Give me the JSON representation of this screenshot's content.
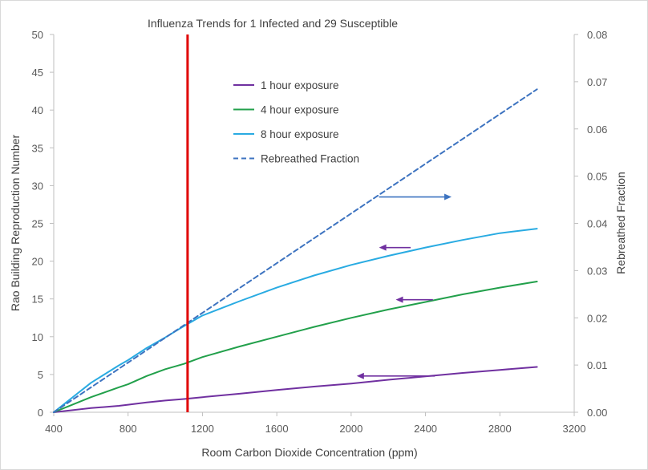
{
  "chart_data": {
    "type": "line",
    "title": "Influenza Trends for 1 Infected and 29 Susceptible",
    "xlabel": "Room Carbon Dioxide Concentration (ppm)",
    "ylabel": "Rao Building Reproduction Number",
    "y2label": "Rebreathed Fraction",
    "xlim": [
      400,
      3200
    ],
    "ylim": [
      0,
      50
    ],
    "y2lim": [
      0,
      0.08
    ],
    "xticks": [
      "400",
      "800",
      "1200",
      "1600",
      "2000",
      "2400",
      "2800",
      "3200"
    ],
    "yticks": [
      "0",
      "5",
      "10",
      "15",
      "20",
      "25",
      "30",
      "35",
      "40",
      "45",
      "50"
    ],
    "y2ticks": [
      "0.00",
      "0.01",
      "0.02",
      "0.03",
      "0.04",
      "0.05",
      "0.06",
      "0.07",
      "0.08"
    ],
    "grid": false,
    "legend_position": "upper-center",
    "reference_line": {
      "x": 1120,
      "color": "#e00000"
    },
    "series": [
      {
        "name": "1 hour exposure",
        "color": "#7030a0",
        "axis": "left",
        "dash": false,
        "x": [
          400,
          600,
          750,
          800,
          900,
          1000,
          1100,
          1200,
          1400,
          1600,
          1800,
          2000,
          2200,
          2400,
          2600,
          2800,
          3000
        ],
        "y": [
          0,
          0.55,
          0.85,
          1.0,
          1.3,
          1.55,
          1.75,
          2.0,
          2.45,
          2.95,
          3.4,
          3.8,
          4.3,
          4.75,
          5.2,
          5.6,
          6.0
        ]
      },
      {
        "name": "4 hour exposure",
        "color": "#22a04b",
        "axis": "left",
        "dash": false,
        "x": [
          400,
          600,
          750,
          800,
          900,
          1000,
          1100,
          1200,
          1400,
          1600,
          1800,
          2000,
          2200,
          2400,
          2600,
          2800,
          3000
        ],
        "y": [
          0,
          2.0,
          3.3,
          3.7,
          4.8,
          5.7,
          6.4,
          7.3,
          8.7,
          10.0,
          11.3,
          12.5,
          13.6,
          14.6,
          15.6,
          16.5,
          17.3
        ]
      },
      {
        "name": "8 hour exposure",
        "color": "#29abe2",
        "axis": "left",
        "dash": false,
        "x": [
          400,
          600,
          750,
          800,
          900,
          1000,
          1100,
          1200,
          1400,
          1600,
          1800,
          2000,
          2200,
          2400,
          2600,
          2800,
          3000
        ],
        "y": [
          0,
          3.9,
          6.2,
          6.9,
          8.5,
          9.9,
          11.4,
          12.8,
          14.7,
          16.5,
          18.1,
          19.5,
          20.7,
          21.8,
          22.8,
          23.7,
          24.3
        ]
      },
      {
        "name": "Rebreathed Fraction",
        "color": "#3d73c0",
        "axis": "right",
        "dash": true,
        "x": [
          400,
          3000
        ],
        "y": [
          0,
          0.0684
        ]
      }
    ],
    "arrows": [
      {
        "color": "#3d73c0",
        "from": {
          "x": 2150,
          "y": 28.5
        },
        "to": {
          "x": 2540,
          "y": 28.5
        }
      },
      {
        "color": "#7030a0",
        "from": {
          "x": 2320,
          "y": 21.8
        },
        "to": {
          "x": 2150,
          "y": 21.8
        }
      },
      {
        "color": "#7030a0",
        "from": {
          "x": 2440,
          "y": 14.9
        },
        "to": {
          "x": 2240,
          "y": 14.9
        }
      },
      {
        "color": "#7030a0",
        "from": {
          "x": 2450,
          "y": 4.8
        },
        "to": {
          "x": 2030,
          "y": 4.8
        }
      }
    ]
  }
}
